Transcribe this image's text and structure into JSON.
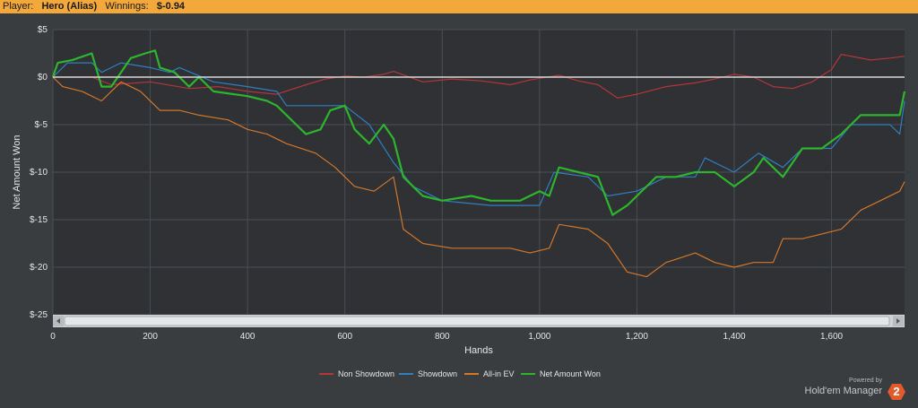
{
  "header": {
    "player_label": "Player:",
    "player_name": "Hero (Alias)",
    "winnings_label": "Winnings:",
    "winnings_value": "$-0.94"
  },
  "branding": {
    "powered_by": "Powered by",
    "product": "Hold'em Manager",
    "badge": "2"
  },
  "chart_data": {
    "type": "line",
    "title": "",
    "xlabel": "Hands",
    "ylabel": "Net Amount Won",
    "xlim": [
      0,
      1750
    ],
    "ylim": [
      -25,
      5
    ],
    "x_ticks": [
      0,
      200,
      400,
      600,
      800,
      1000,
      1200,
      1400,
      1600
    ],
    "x_tick_labels": [
      "0",
      "200",
      "400",
      "600",
      "800",
      "1,000",
      "1,200",
      "1,400",
      "1,600"
    ],
    "y_ticks": [
      5,
      0,
      -5,
      -10,
      -15,
      -20,
      -25
    ],
    "y_tick_labels": [
      "$5",
      "$0",
      "$-5",
      "$-10",
      "$-15",
      "$-20",
      "$-25"
    ],
    "grid": true,
    "legend_position": "bottom-center",
    "series": [
      {
        "name": "Non Showdown",
        "color": "#b5353a",
        "points": [
          [
            0,
            0
          ],
          [
            80,
            0
          ],
          [
            120,
            -0.8
          ],
          [
            200,
            -0.5
          ],
          [
            280,
            -1.2
          ],
          [
            340,
            -1.0
          ],
          [
            400,
            -1.5
          ],
          [
            460,
            -1.8
          ],
          [
            520,
            -0.8
          ],
          [
            560,
            -0.2
          ],
          [
            600,
            0.1
          ],
          [
            640,
            0
          ],
          [
            680,
            0.3
          ],
          [
            700,
            0.6
          ],
          [
            760,
            -0.5
          ],
          [
            820,
            -0.2
          ],
          [
            880,
            -0.4
          ],
          [
            940,
            -0.8
          ],
          [
            980,
            -0.3
          ],
          [
            1040,
            0.2
          ],
          [
            1080,
            -0.4
          ],
          [
            1120,
            -0.8
          ],
          [
            1160,
            -2.2
          ],
          [
            1200,
            -1.8
          ],
          [
            1260,
            -1.0
          ],
          [
            1320,
            -0.6
          ],
          [
            1360,
            -0.2
          ],
          [
            1400,
            0.3
          ],
          [
            1440,
            0.0
          ],
          [
            1480,
            -1.0
          ],
          [
            1520,
            -1.2
          ],
          [
            1560,
            -0.5
          ],
          [
            1600,
            0.8
          ],
          [
            1620,
            2.4
          ],
          [
            1680,
            1.8
          ],
          [
            1720,
            2.0
          ],
          [
            1750,
            2.2
          ]
        ]
      },
      {
        "name": "Showdown",
        "color": "#2f7fc1",
        "points": [
          [
            0,
            0
          ],
          [
            30,
            1.5
          ],
          [
            80,
            1.5
          ],
          [
            100,
            0.5
          ],
          [
            140,
            1.5
          ],
          [
            200,
            1.0
          ],
          [
            240,
            0.5
          ],
          [
            260,
            1.0
          ],
          [
            330,
            -0.5
          ],
          [
            400,
            -1.0
          ],
          [
            460,
            -1.5
          ],
          [
            480,
            -3.0
          ],
          [
            550,
            -3.0
          ],
          [
            600,
            -3.0
          ],
          [
            650,
            -5.0
          ],
          [
            700,
            -9.0
          ],
          [
            740,
            -11.5
          ],
          [
            800,
            -13.0
          ],
          [
            900,
            -13.5
          ],
          [
            1000,
            -13.5
          ],
          [
            1030,
            -10.0
          ],
          [
            1100,
            -10.5
          ],
          [
            1140,
            -12.5
          ],
          [
            1200,
            -12.0
          ],
          [
            1260,
            -10.5
          ],
          [
            1320,
            -10.5
          ],
          [
            1340,
            -8.5
          ],
          [
            1400,
            -10.0
          ],
          [
            1450,
            -8.0
          ],
          [
            1500,
            -9.5
          ],
          [
            1540,
            -7.5
          ],
          [
            1600,
            -7.5
          ],
          [
            1640,
            -5.0
          ],
          [
            1720,
            -5.0
          ],
          [
            1740,
            -6.0
          ],
          [
            1750,
            -2.5
          ]
        ]
      },
      {
        "name": "All-in EV",
        "color": "#d2772b",
        "points": [
          [
            0,
            0
          ],
          [
            20,
            -1.0
          ],
          [
            60,
            -1.5
          ],
          [
            100,
            -2.5
          ],
          [
            140,
            -0.5
          ],
          [
            180,
            -1.5
          ],
          [
            220,
            -3.5
          ],
          [
            260,
            -3.5
          ],
          [
            300,
            -4.0
          ],
          [
            360,
            -4.5
          ],
          [
            400,
            -5.5
          ],
          [
            440,
            -6.0
          ],
          [
            480,
            -7.0
          ],
          [
            540,
            -8.0
          ],
          [
            580,
            -9.5
          ],
          [
            620,
            -11.5
          ],
          [
            660,
            -12.0
          ],
          [
            700,
            -10.5
          ],
          [
            720,
            -16.0
          ],
          [
            760,
            -17.5
          ],
          [
            820,
            -18.0
          ],
          [
            880,
            -18.0
          ],
          [
            940,
            -18.0
          ],
          [
            980,
            -18.5
          ],
          [
            1020,
            -18.0
          ],
          [
            1040,
            -15.5
          ],
          [
            1100,
            -16.0
          ],
          [
            1140,
            -17.5
          ],
          [
            1180,
            -20.5
          ],
          [
            1220,
            -21.0
          ],
          [
            1260,
            -19.5
          ],
          [
            1320,
            -18.5
          ],
          [
            1360,
            -19.5
          ],
          [
            1400,
            -20.0
          ],
          [
            1440,
            -19.5
          ],
          [
            1480,
            -19.5
          ],
          [
            1500,
            -17.0
          ],
          [
            1540,
            -17.0
          ],
          [
            1580,
            -16.5
          ],
          [
            1620,
            -16.0
          ],
          [
            1660,
            -14.0
          ],
          [
            1700,
            -13.0
          ],
          [
            1740,
            -12.0
          ],
          [
            1750,
            -11.0
          ]
        ]
      },
      {
        "name": "Net Amount Won",
        "color": "#2eb52e",
        "points": [
          [
            0,
            0
          ],
          [
            10,
            1.5
          ],
          [
            40,
            1.8
          ],
          [
            80,
            2.5
          ],
          [
            100,
            -1.0
          ],
          [
            120,
            -1.0
          ],
          [
            140,
            0.5
          ],
          [
            160,
            2.0
          ],
          [
            190,
            2.5
          ],
          [
            210,
            2.8
          ],
          [
            220,
            1.0
          ],
          [
            250,
            0.5
          ],
          [
            280,
            -1.0
          ],
          [
            300,
            0.0
          ],
          [
            330,
            -1.5
          ],
          [
            400,
            -2.0
          ],
          [
            440,
            -2.5
          ],
          [
            460,
            -3.0
          ],
          [
            480,
            -4.0
          ],
          [
            500,
            -5.0
          ],
          [
            520,
            -6.0
          ],
          [
            550,
            -5.5
          ],
          [
            570,
            -3.5
          ],
          [
            600,
            -3.0
          ],
          [
            620,
            -5.5
          ],
          [
            650,
            -7.0
          ],
          [
            680,
            -5.0
          ],
          [
            700,
            -6.5
          ],
          [
            720,
            -10.5
          ],
          [
            760,
            -12.5
          ],
          [
            800,
            -13.0
          ],
          [
            860,
            -12.5
          ],
          [
            900,
            -13.0
          ],
          [
            960,
            -13.0
          ],
          [
            1000,
            -12.0
          ],
          [
            1020,
            -12.5
          ],
          [
            1040,
            -9.5
          ],
          [
            1080,
            -10.0
          ],
          [
            1120,
            -10.5
          ],
          [
            1150,
            -14.5
          ],
          [
            1180,
            -13.5
          ],
          [
            1200,
            -12.5
          ],
          [
            1240,
            -10.5
          ],
          [
            1280,
            -10.5
          ],
          [
            1320,
            -10.0
          ],
          [
            1360,
            -10.0
          ],
          [
            1400,
            -11.5
          ],
          [
            1440,
            -10.0
          ],
          [
            1460,
            -8.5
          ],
          [
            1500,
            -10.5
          ],
          [
            1540,
            -7.5
          ],
          [
            1580,
            -7.5
          ],
          [
            1620,
            -6.0
          ],
          [
            1660,
            -4.0
          ],
          [
            1700,
            -4.0
          ],
          [
            1740,
            -4.0
          ],
          [
            1750,
            -1.5
          ]
        ]
      }
    ]
  }
}
